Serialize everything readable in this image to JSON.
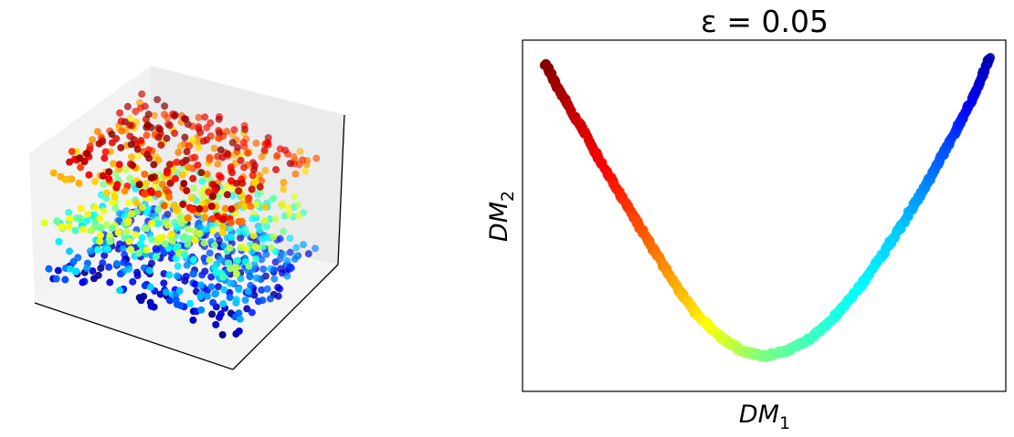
{
  "chart_data": [
    {
      "type": "scatter",
      "projection": "3d",
      "title": "",
      "xlabel": "",
      "ylabel": "",
      "zlabel": "",
      "ticks": "hidden",
      "grid": false,
      "colormap": "jet",
      "description_of_points": "3D point cloud (~1000 points) forming an S-shaped / folded sheet with three stacked layers; colored by a parameter t in [0,1] via jet colormap (blue at bottom layer front, green in middle, red/dark red on top layer).",
      "layers": [
        {
          "name": "bottom",
          "t_range": [
            0.0,
            0.35
          ]
        },
        {
          "name": "middle",
          "t_range": [
            0.35,
            0.65
          ]
        },
        {
          "name": "top",
          "t_range": [
            0.65,
            1.0
          ]
        }
      ],
      "n_points": 1000
    },
    {
      "type": "scatter",
      "title": "ε = 0.05",
      "xlabel": "DM",
      "xlabel_sub": "1",
      "ylabel": "DM",
      "ylabel_sub": "2",
      "ticks": "hidden",
      "grid": false,
      "legend": "none",
      "colormap": "jet",
      "xlim": [
        -1.05,
        1.05
      ],
      "ylim": [
        -0.12,
        1.08
      ],
      "curve": "parabola-like embedding; left end dark red at top-left, vertex green near bottom-center, right end dark blue at top-right",
      "x": [
        -0.95,
        -0.9,
        -0.8,
        -0.7,
        -0.6,
        -0.5,
        -0.4,
        -0.3,
        -0.2,
        -0.1,
        0.0,
        0.1,
        0.2,
        0.3,
        0.4,
        0.5,
        0.6,
        0.7,
        0.8,
        0.9,
        0.98
      ],
      "y": [
        1.0,
        0.92,
        0.79,
        0.65,
        0.52,
        0.39,
        0.26,
        0.15,
        0.07,
        0.02,
        0.0,
        0.02,
        0.06,
        0.13,
        0.22,
        0.33,
        0.45,
        0.58,
        0.72,
        0.87,
        1.02
      ],
      "t": [
        1.0,
        0.97,
        0.92,
        0.88,
        0.83,
        0.78,
        0.72,
        0.66,
        0.6,
        0.55,
        0.5,
        0.47,
        0.44,
        0.41,
        0.38,
        0.35,
        0.32,
        0.26,
        0.2,
        0.12,
        0.05
      ],
      "n_points": 1000
    }
  ]
}
